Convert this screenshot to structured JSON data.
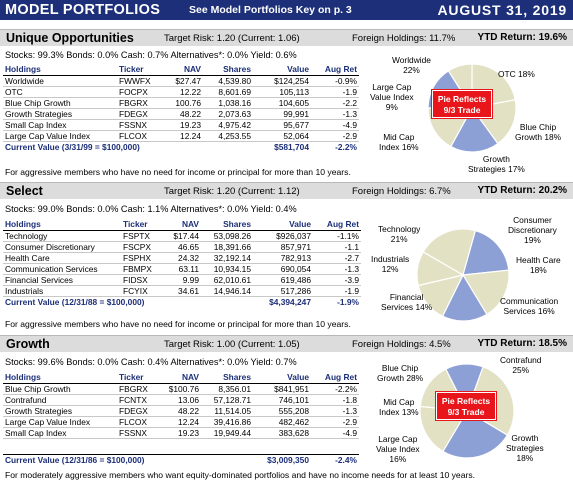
{
  "banner": {
    "title": "MODEL PORTFOLIOS",
    "key_note": "See Model Portfolios Key on p. 3",
    "date": "AUGUST 31, 2019"
  },
  "columns": [
    "Holdings",
    "Ticker",
    "NAV",
    "Shares",
    "Value",
    "Aug Ret"
  ],
  "sections": [
    {
      "name": "Unique Opportunities",
      "risk": "Target Risk: 1.20  (Current: 1.06)",
      "foreign": "Foreign Holdings: 11.7%",
      "ytd": "YTD Return: 19.6%",
      "allocation": "Stocks: 99.3%  Bonds: 0.0%  Cash: 0.7%  Alternatives*: 0.0%  Yield: 0.6%",
      "rows": [
        [
          "Worldwide",
          "FWWFX",
          "$27.47",
          "4,539.80",
          "$124,254",
          "-0.9%"
        ],
        [
          "OTC",
          "FOCPX",
          "12.22",
          "8,601.69",
          "105,113",
          "-1.9"
        ],
        [
          "Blue Chip Growth",
          "FBGRX",
          "100.76",
          "1,038.16",
          "104,605",
          "-2.2"
        ],
        [
          "Growth Strategies",
          "FDEGX",
          "48.22",
          "2,073.63",
          "99,991",
          "-1.3"
        ],
        [
          "Small Cap Index",
          "FSSNX",
          "19.23",
          "4,975.42",
          "95,677",
          "-4.9"
        ],
        [
          "Large Cap Value Index",
          "FLCOX",
          "12.24",
          "4,253.55",
          "52,064",
          "-2.9"
        ]
      ],
      "total_label": "Current Value (3/31/99 = $100,000)",
      "total_value": "$581,704",
      "total_ret": "-2.2%",
      "note": "For aggressive members who have no need for income or principal for more than 10 years.",
      "pie_labels": [
        "Worldwide",
        "22%",
        "OTC 18%",
        "Blue Chip",
        "Growth 18%",
        "Growth",
        "Strategies 17%",
        "Mid Cap",
        "Index 16%",
        "Large Cap",
        "Value Index",
        "9%"
      ],
      "trade": [
        "Pie Reflects",
        "9/3 Trade"
      ],
      "slices": [
        22,
        18,
        18,
        17,
        16,
        9
      ],
      "colors": [
        "#e3e1c3",
        "#e3e1c3",
        "#8da0d6",
        "#e3e1c3",
        "#8da0d6",
        "#e3e1c3"
      ]
    },
    {
      "name": "Select",
      "risk": "Target Risk: 1.20  (Current: 1.12)",
      "foreign": "Foreign Holdings: 6.7%",
      "ytd": "YTD Return: 20.2%",
      "allocation": "Stocks: 99.0%  Bonds: 0.0%  Cash: 1.1%  Alternatives*: 0.0%  Yield: 0.4%",
      "rows": [
        [
          "Technology",
          "FSPTX",
          "$17.44",
          "53,098.26",
          "$926,037",
          "-1.1%"
        ],
        [
          "Consumer Discretionary",
          "FSCPX",
          "46.65",
          "18,391.66",
          "857,971",
          "-1.1"
        ],
        [
          "Health Care",
          "FSPHX",
          "24.32",
          "32,192.14",
          "782,913",
          "-2.7"
        ],
        [
          "Communication Services",
          "FBMPX",
          "63.11",
          "10,934.15",
          "690,054",
          "-1.3"
        ],
        [
          "Financial Services",
          "FIDSX",
          "9.99",
          "62,010.61",
          "619,486",
          "-3.9"
        ],
        [
          "Industrials",
          "FCYIX",
          "34.61",
          "14,946.14",
          "517,286",
          "-1.9"
        ]
      ],
      "total_label": "Current Value (12/31/88 = $100,000)",
      "total_value": "$4,394,247",
      "total_ret": "-1.9%",
      "note": "For aggressive members who have no need for income or principal for more than 10 years.",
      "pie_labels": [
        "Consumer",
        "Discretionary",
        "19%",
        "Health Care",
        "18%",
        "Communication",
        "Services 16%",
        "Financial",
        "Services 14%",
        "Industrials",
        "12%",
        "Technology",
        "21%"
      ],
      "slices": [
        21,
        19,
        18,
        16,
        14,
        12
      ],
      "colors": [
        "#e3e1c3",
        "#8da0d6",
        "#e3e1c3",
        "#8da0d6",
        "#e3e1c3",
        "#e3e1c3"
      ]
    },
    {
      "name": "Growth",
      "risk": "Target Risk: 1.00  (Current: 1.05)",
      "foreign": "Foreign Holdings: 4.5%",
      "ytd": "YTD Return: 18.5%",
      "allocation": "Stocks: 99.6%  Bonds: 0.0%  Cash: 0.4%  Alternatives*: 0.0%  Yield: 0.7%",
      "rows": [
        [
          "Blue Chip Growth",
          "FBGRX",
          "$100.76",
          "8,356.01",
          "$841,951",
          "-2.2%"
        ],
        [
          "Contrafund",
          "FCNTX",
          "13.06",
          "57,128.71",
          "746,101",
          "-1.8"
        ],
        [
          "Growth Strategies",
          "FDEGX",
          "48.22",
          "11,514.05",
          "555,208",
          "-1.3"
        ],
        [
          "Large Cap Value Index",
          "FLCOX",
          "12.24",
          "39,416.86",
          "482,462",
          "-2.9"
        ],
        [
          "Small Cap Index",
          "FSSNX",
          "19.23",
          "19,949.44",
          "383,628",
          "-4.9"
        ]
      ],
      "total_label": "Current Value (12/31/86 = $100,000)",
      "total_value": "$3,009,350",
      "total_ret": "-2.4%",
      "note": "For moderately aggressive members who want equity-dominated portfolios and have no income needs for at least 10 years.",
      "pie_labels": [
        "Contrafund",
        "25%",
        "Growth",
        "Strategies",
        "18%",
        "Large Cap",
        "Value Index",
        "16%",
        "Mid Cap",
        "Index 13%",
        "Blue Chip",
        "Growth 28%"
      ],
      "trade": [
        "Pie Reflects",
        "9/3 Trade"
      ],
      "slices": [
        28,
        25,
        18,
        16,
        13
      ],
      "colors": [
        "#e3e1c3",
        "#8da0d6",
        "#e3e1c3",
        "#e3e1c3",
        "#8da0d6"
      ]
    }
  ]
}
